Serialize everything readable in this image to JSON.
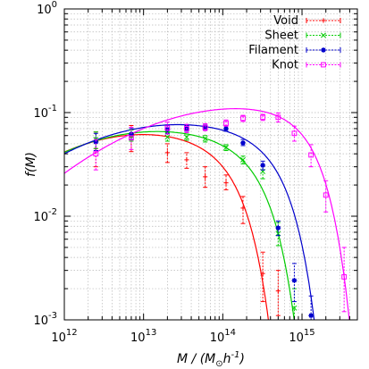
{
  "chart_data": {
    "type": "scatter",
    "title": "",
    "xlabel": {
      "main": "M / (M",
      "sub": "⊙",
      "tail": "h",
      "sup": "-1",
      "close": ")"
    },
    "ylabel": "f(M)",
    "x_scale": "log",
    "y_scale": "log",
    "xlim": [
      1000000000000.0,
      5000000000000000.0
    ],
    "ylim": [
      0.001,
      1
    ],
    "x_ticks": [
      {
        "value": 1000000000000.0,
        "base": "10",
        "exp": "12"
      },
      {
        "value": 10000000000000.0,
        "base": "10",
        "exp": "13"
      },
      {
        "value": 100000000000000.0,
        "base": "10",
        "exp": "14"
      },
      {
        "value": 1000000000000000.0,
        "base": "10",
        "exp": "15"
      }
    ],
    "y_ticks": [
      {
        "value": 1,
        "base": "10",
        "exp": "0"
      },
      {
        "value": 0.1,
        "base": "10",
        "exp": "-1"
      },
      {
        "value": 0.01,
        "base": "10",
        "exp": "-2"
      },
      {
        "value": 0.001,
        "base": "10",
        "exp": "-3"
      }
    ],
    "grid": true,
    "legend_position": "top-right",
    "series": [
      {
        "name": "Void",
        "color": "#ff0000",
        "marker": "plus",
        "points": [
          {
            "x": 2500000000000.0,
            "y": 0.045,
            "lo": 0.03,
            "hi": 0.065
          },
          {
            "x": 7000000000000.0,
            "y": 0.058,
            "lo": 0.042,
            "hi": 0.075
          },
          {
            "x": 20000000000000.0,
            "y": 0.041,
            "lo": 0.033,
            "hi": 0.05
          },
          {
            "x": 35000000000000.0,
            "y": 0.035,
            "lo": 0.029,
            "hi": 0.041
          },
          {
            "x": 60000000000000.0,
            "y": 0.024,
            "lo": 0.019,
            "hi": 0.03
          },
          {
            "x": 110000000000000.0,
            "y": 0.021,
            "lo": 0.018,
            "hi": 0.025
          },
          {
            "x": 180000000000000.0,
            "y": 0.012,
            "lo": 0.0085,
            "hi": 0.0155
          },
          {
            "x": 320000000000000.0,
            "y": 0.0028,
            "lo": 0.0015,
            "hi": 0.0045
          },
          {
            "x": 500000000000000.0,
            "y": 0.0019,
            "lo": 0.0011,
            "hi": 0.003
          }
        ],
        "curve": {
          "A": 0.062,
          "Mc": 11000000000000.0,
          "ms": 180000000000000.0,
          "alpha": 0.16
        }
      },
      {
        "name": "Sheet",
        "color": "#00cc00",
        "marker": "x",
        "points": [
          {
            "x": 2500000000000.0,
            "y": 0.055,
            "lo": 0.045,
            "hi": 0.065
          },
          {
            "x": 7000000000000.0,
            "y": 0.06,
            "lo": 0.053,
            "hi": 0.068
          },
          {
            "x": 20000000000000.0,
            "y": 0.058,
            "lo": 0.053,
            "hi": 0.064
          },
          {
            "x": 35000000000000.0,
            "y": 0.058,
            "lo": 0.054,
            "hi": 0.062
          },
          {
            "x": 60000000000000.0,
            "y": 0.056,
            "lo": 0.052,
            "hi": 0.06
          },
          {
            "x": 110000000000000.0,
            "y": 0.046,
            "lo": 0.043,
            "hi": 0.049
          },
          {
            "x": 180000000000000.0,
            "y": 0.035,
            "lo": 0.032,
            "hi": 0.038
          },
          {
            "x": 320000000000000.0,
            "y": 0.027,
            "lo": 0.023,
            "hi": 0.031
          },
          {
            "x": 500000000000000.0,
            "y": 0.0068,
            "lo": 0.0052,
            "hi": 0.0087
          },
          {
            "x": 800000000000000.0,
            "y": 0.0013,
            "lo": 0.0008,
            "hi": 0.002
          }
        ],
        "curve": {
          "A": 0.066,
          "Mc": 16000000000000.0,
          "ms": 380000000000000.0,
          "alpha": 0.14
        }
      },
      {
        "name": "Filament",
        "color": "#0000cc",
        "marker": "star",
        "points": [
          {
            "x": 2500000000000.0,
            "y": 0.052,
            "lo": 0.043,
            "hi": 0.063
          },
          {
            "x": 7000000000000.0,
            "y": 0.062,
            "lo": 0.055,
            "hi": 0.07
          },
          {
            "x": 20000000000000.0,
            "y": 0.069,
            "lo": 0.063,
            "hi": 0.075
          },
          {
            "x": 35000000000000.0,
            "y": 0.07,
            "lo": 0.066,
            "hi": 0.075
          },
          {
            "x": 60000000000000.0,
            "y": 0.072,
            "lo": 0.068,
            "hi": 0.076
          },
          {
            "x": 110000000000000.0,
            "y": 0.07,
            "lo": 0.066,
            "hi": 0.074
          },
          {
            "x": 180000000000000.0,
            "y": 0.051,
            "lo": 0.048,
            "hi": 0.055
          },
          {
            "x": 320000000000000.0,
            "y": 0.031,
            "lo": 0.028,
            "hi": 0.034
          },
          {
            "x": 500000000000000.0,
            "y": 0.0077,
            "lo": 0.0065,
            "hi": 0.009
          },
          {
            "x": 800000000000000.0,
            "y": 0.0024,
            "lo": 0.0015,
            "hi": 0.0035
          },
          {
            "x": 1300000000000000.0,
            "y": 0.0011,
            "lo": 0.0007,
            "hi": 0.0017
          }
        ],
        "curve": {
          "A": 0.077,
          "Mc": 30000000000000.0,
          "ms": 650000000000000.0,
          "alpha": 0.13
        }
      },
      {
        "name": "Knot",
        "color": "#ff00ff",
        "marker": "box",
        "points": [
          {
            "x": 2500000000000.0,
            "y": 0.04,
            "lo": 0.028,
            "hi": 0.055
          },
          {
            "x": 7000000000000.0,
            "y": 0.057,
            "lo": 0.044,
            "hi": 0.072
          },
          {
            "x": 20000000000000.0,
            "y": 0.071,
            "lo": 0.062,
            "hi": 0.081
          },
          {
            "x": 35000000000000.0,
            "y": 0.07,
            "lo": 0.064,
            "hi": 0.077
          },
          {
            "x": 60000000000000.0,
            "y": 0.072,
            "lo": 0.067,
            "hi": 0.078
          },
          {
            "x": 110000000000000.0,
            "y": 0.079,
            "lo": 0.074,
            "hi": 0.085
          },
          {
            "x": 180000000000000.0,
            "y": 0.088,
            "lo": 0.082,
            "hi": 0.094
          },
          {
            "x": 320000000000000.0,
            "y": 0.09,
            "lo": 0.084,
            "hi": 0.096
          },
          {
            "x": 500000000000000.0,
            "y": 0.09,
            "lo": 0.081,
            "hi": 0.099
          },
          {
            "x": 800000000000000.0,
            "y": 0.063,
            "lo": 0.053,
            "hi": 0.074
          },
          {
            "x": 1300000000000000.0,
            "y": 0.039,
            "lo": 0.03,
            "hi": 0.049
          },
          {
            "x": 2000000000000000.0,
            "y": 0.016,
            "lo": 0.011,
            "hi": 0.022
          },
          {
            "x": 3400000000000000.0,
            "y": 0.0026,
            "lo": 0.0012,
            "hi": 0.005
          }
        ],
        "curve": {
          "A": 0.112,
          "Mc": 200000000000000.0,
          "ms": 1600000000000000.0,
          "alpha": 0.12
        }
      }
    ]
  }
}
